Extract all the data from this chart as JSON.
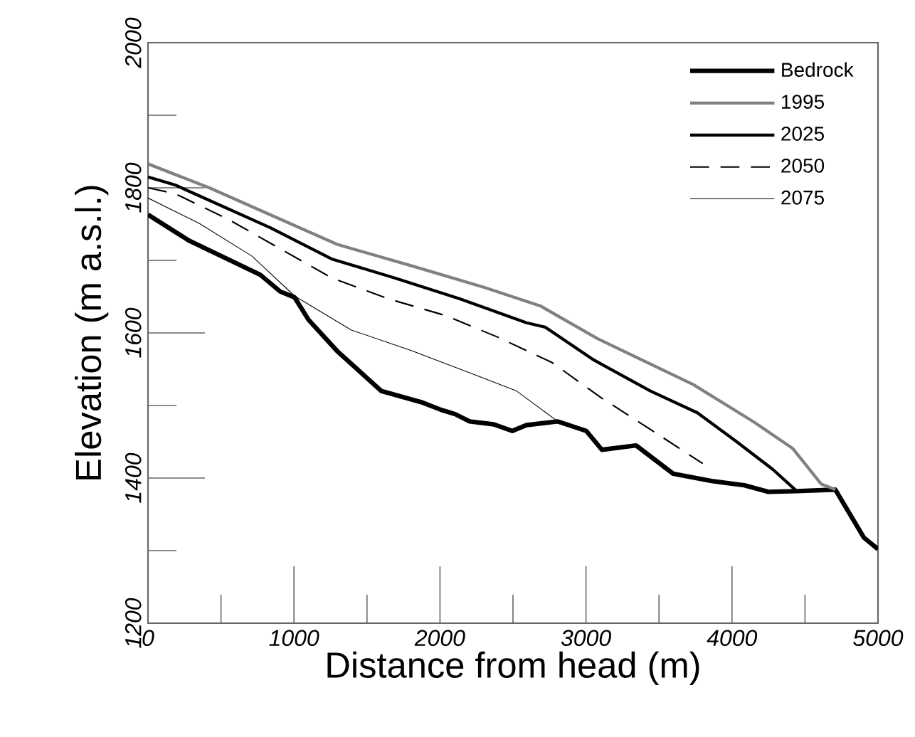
{
  "chart_data": {
    "type": "line",
    "xlabel": "Distance from head (m)",
    "ylabel": "Elevation (m a.s.l.)",
    "xlim": [
      0,
      5000
    ],
    "ylim": [
      1200,
      2000
    ],
    "xticks": [
      0,
      1000,
      2000,
      3000,
      4000,
      5000
    ],
    "yticks": [
      1200,
      1400,
      1600,
      1800,
      2000
    ],
    "legend": "top right",
    "grid": false,
    "marker": "none",
    "series": [
      {
        "name": "Bedrock",
        "color": "#000000",
        "line_style": "solid",
        "x": [
          0,
          283,
          770,
          906,
          1004,
          1100,
          1296,
          1598,
          1881,
          2008,
          2105,
          2203,
          2368,
          2495,
          2593,
          2807,
          3002,
          3109,
          3343,
          3597,
          3860,
          4084,
          4250,
          4444,
          4708,
          4903,
          5000
        ],
        "values": [
          1763,
          1727,
          1680,
          1657,
          1649,
          1618,
          1575,
          1520,
          1504,
          1494,
          1488,
          1478,
          1474,
          1465,
          1473,
          1478,
          1465,
          1439,
          1445,
          1406,
          1396,
          1390,
          1381,
          1382,
          1384,
          1318,
          1302
        ]
      },
      {
        "name": "1995",
        "color": "#808080",
        "line_style": "solid",
        "x": [
          0,
          420,
          1296,
          1813,
          2300,
          2690,
          3080,
          3733,
          4152,
          4415,
          4610,
          4708
        ],
        "values": [
          1833,
          1800,
          1722,
          1692,
          1663,
          1637,
          1592,
          1529,
          1477,
          1441,
          1392,
          1384
        ]
      },
      {
        "name": "2025",
        "color": "#000000",
        "line_style": "solid",
        "x": [
          0,
          185,
          838,
          1257,
          1686,
          2135,
          2593,
          2720,
          3051,
          3441,
          3763,
          4026,
          4279,
          4444
        ],
        "values": [
          1815,
          1804,
          1745,
          1702,
          1676,
          1647,
          1614,
          1608,
          1563,
          1520,
          1490,
          1451,
          1412,
          1382
        ]
      },
      {
        "name": "2050",
        "color": "#000000",
        "line_style": "dashed",
        "x": [
          0,
          185,
          546,
          906,
          1257,
          1647,
          2037,
          2398,
          2769,
          3109,
          3441,
          3800
        ],
        "values": [
          1800,
          1792,
          1757,
          1716,
          1676,
          1647,
          1624,
          1594,
          1559,
          1510,
          1467,
          1420
        ]
      },
      {
        "name": "2075",
        "color": "#000000",
        "line_style": "solid",
        "x": [
          0,
          351,
          711,
          1004,
          1393,
          1813,
          2203,
          2524,
          2807
        ],
        "values": [
          1786,
          1751,
          1706,
          1651,
          1604,
          1575,
          1545,
          1520,
          1478
        ]
      }
    ]
  }
}
